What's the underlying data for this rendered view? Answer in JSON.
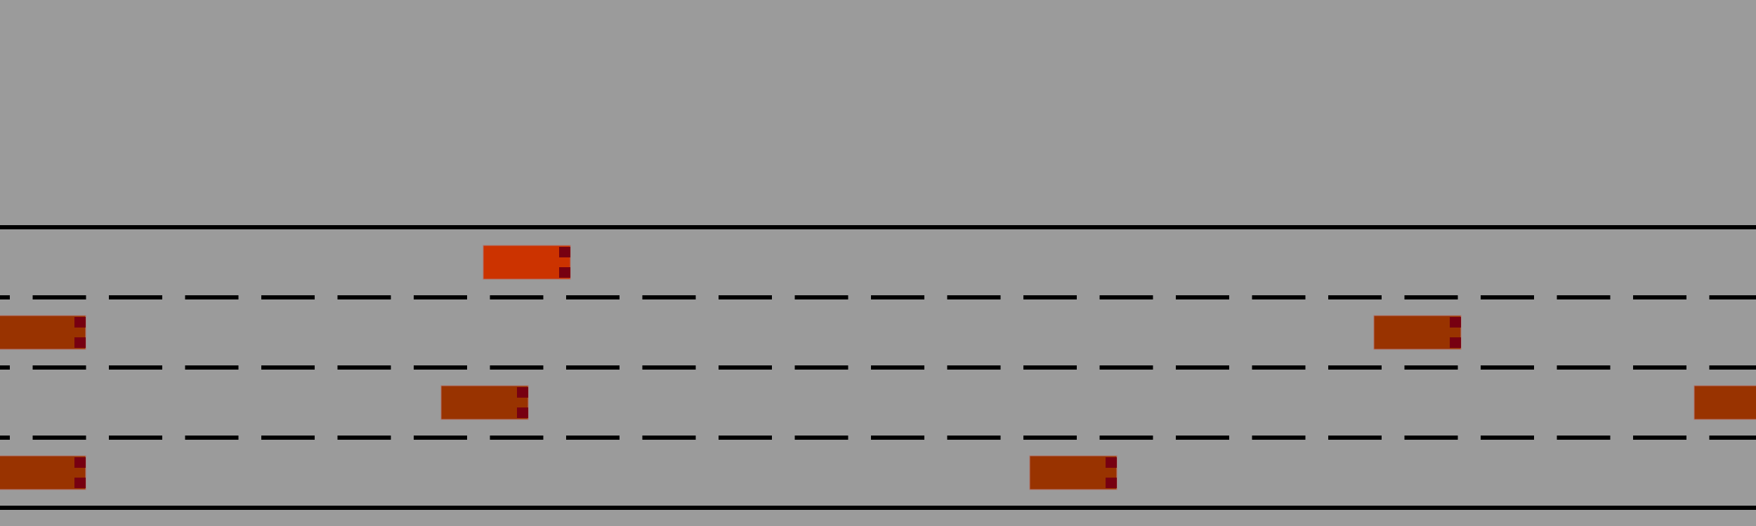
{
  "scene": {
    "background_color": "#9b9b9b",
    "road": {
      "lane_count": 4,
      "edge_line_color": "#000000",
      "lane_marking_color": "#000000",
      "lane_marking_style": "dashed"
    },
    "vehicles": [
      {
        "role": "ego",
        "lane": 0,
        "color": "#cc3300",
        "light_color": "#770011",
        "heading": "right"
      },
      {
        "role": "other",
        "lane": 1,
        "color": "#993300",
        "light_color": "#770011",
        "heading": "right"
      },
      {
        "role": "other",
        "lane": 1,
        "color": "#993300",
        "light_color": "#770011",
        "heading": "right"
      },
      {
        "role": "other",
        "lane": 2,
        "color": "#993300",
        "light_color": "#770011",
        "heading": "right"
      },
      {
        "role": "other",
        "lane": 2,
        "color": "#993300",
        "light_color": "#770011",
        "heading": "right"
      },
      {
        "role": "other",
        "lane": 3,
        "color": "#993300",
        "light_color": "#770011",
        "heading": "right"
      },
      {
        "role": "other",
        "lane": 3,
        "color": "#993300",
        "light_color": "#770011",
        "heading": "right"
      }
    ]
  }
}
